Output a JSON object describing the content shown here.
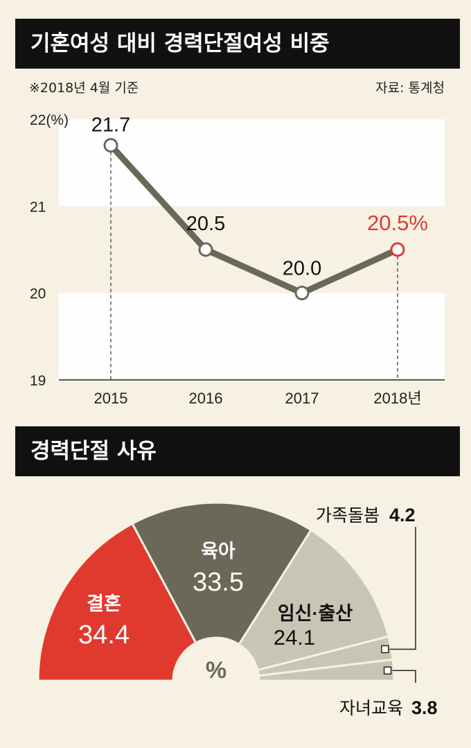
{
  "title1": "기혼여성 대비 경력단절여성 비중",
  "note_left": "※2018년 4월 기준",
  "note_right": "자료: 통계청",
  "title2": "경력단절 사유",
  "colors": {
    "line": "#6b6857",
    "highlight": "#e03a2e",
    "pie_red": "#e03a2e",
    "pie_dark": "#6b6857",
    "pie_light": "#c9c5b4",
    "background": "#f7f1e3"
  },
  "chart_data": [
    {
      "type": "line",
      "title": "기혼여성 대비 경력단절여성 비중",
      "categories": [
        "2015",
        "2016",
        "2017",
        "2018년"
      ],
      "values": [
        21.7,
        20.5,
        20.0,
        20.5
      ],
      "value_labels": [
        "21.7",
        "20.5",
        "20.0",
        "20.5%"
      ],
      "ylim": [
        19,
        22
      ],
      "yticks": [
        19,
        20,
        21,
        22
      ],
      "ytick_labels": [
        "19",
        "20",
        "21",
        "22(%)"
      ],
      "highlight_index": 3,
      "grid": "alternating bands"
    },
    {
      "type": "pie",
      "title": "경력단절 사유",
      "center_label": "%",
      "slices": [
        {
          "label": "결혼",
          "value": 34.4,
          "value_label": "34.4"
        },
        {
          "label": "육아",
          "value": 33.5,
          "value_label": "33.5"
        },
        {
          "label": "임신·출산",
          "value": 24.1,
          "value_label": "24.1"
        },
        {
          "label": "가족돌봄",
          "value": 4.2,
          "value_label": "4.2"
        },
        {
          "label": "자녀교육",
          "value": 3.8,
          "value_label": "3.8"
        }
      ]
    }
  ]
}
